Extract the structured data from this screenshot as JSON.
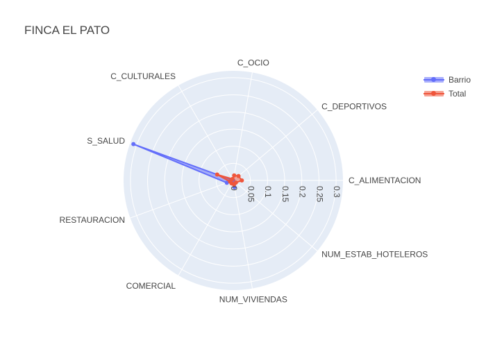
{
  "title": "FINCA EL PATO",
  "chart_data": {
    "type": "radar",
    "title": "FINCA EL PATO",
    "categories": [
      "C_ALIMENTACION",
      "C_DEPORTIVOS",
      "C_OCIO",
      "C_CULTURALES",
      "S_SALUD",
      "RESTAURACION",
      "COMERCIAL",
      "NUM_VIVIENDAS",
      "NUM_ESTAB_HOTELEROS"
    ],
    "radial_ticks": [
      "0",
      "0.05",
      "0.1",
      "0.15",
      "0.2",
      "0.25",
      "0.3"
    ],
    "radial_range": [
      0,
      0.32
    ],
    "series": [
      {
        "name": "Barrio",
        "color": "#636efa",
        "values": [
          0.0,
          0.0,
          0.0,
          0.0,
          0.31,
          0.02,
          0.005,
          0.02,
          0.0
        ]
      },
      {
        "name": "Total",
        "color": "#ef553b",
        "values": [
          0.025,
          0.02,
          0.015,
          0.005,
          0.05,
          0.01,
          0.01,
          0.012,
          0.01
        ]
      }
    ]
  },
  "legend": [
    {
      "name": "Barrio",
      "color": "#636efa"
    },
    {
      "name": "Total",
      "color": "#ef553b"
    }
  ]
}
